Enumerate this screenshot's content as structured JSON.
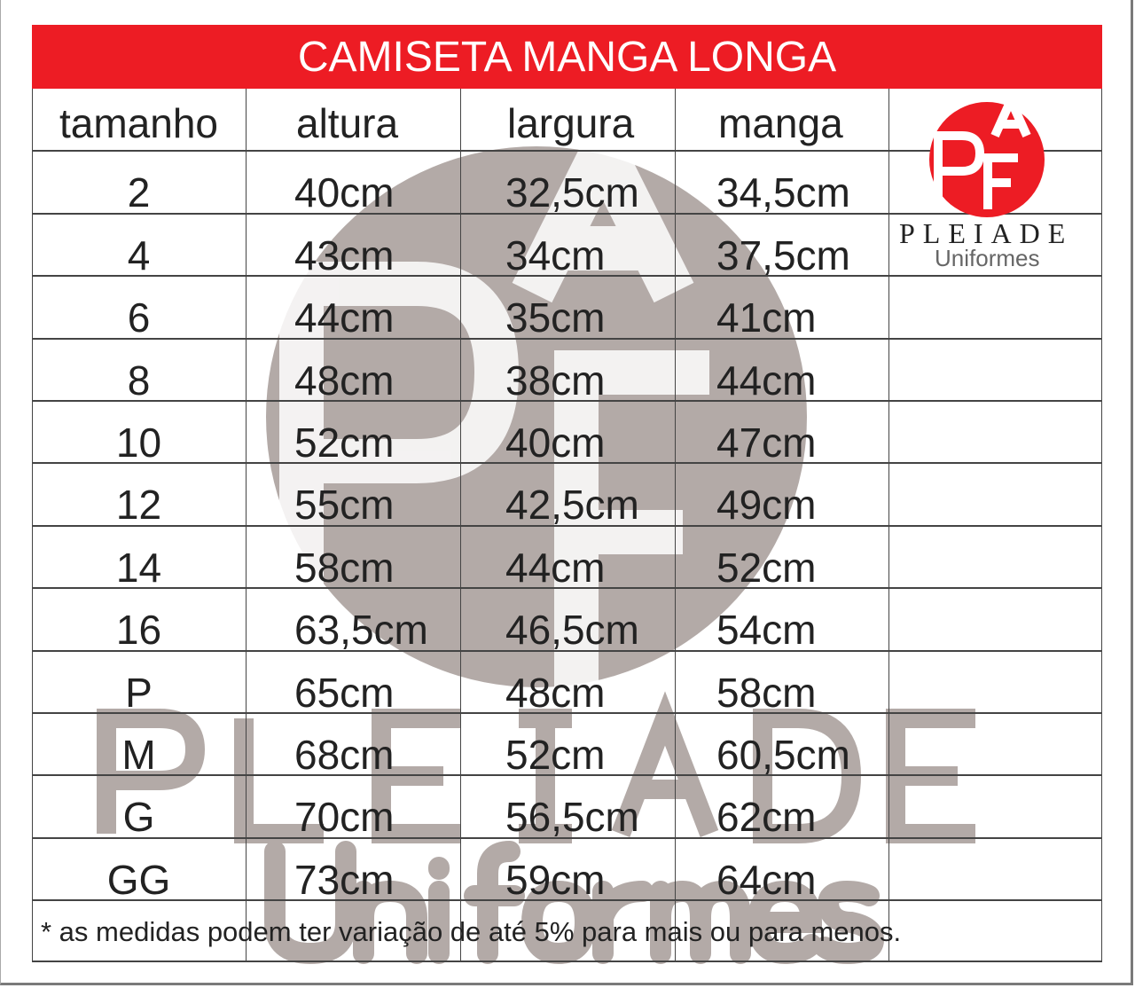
{
  "title": "CAMISETA MANGA LONGA",
  "columns": [
    "tamanho",
    "altura",
    "largura",
    "manga"
  ],
  "rows": [
    [
      "2",
      "40cm",
      "32,5cm",
      "34,5cm"
    ],
    [
      "4",
      "43cm",
      "34cm",
      "37,5cm"
    ],
    [
      "6",
      "44cm",
      "35cm",
      "41cm"
    ],
    [
      "8",
      "48cm",
      "38cm",
      "44cm"
    ],
    [
      "10",
      "52cm",
      "40cm",
      "47cm"
    ],
    [
      "12",
      "55cm",
      "42,5cm",
      "49cm"
    ],
    [
      "14",
      "58cm",
      "44cm",
      "52cm"
    ],
    [
      "16",
      "63,5cm",
      "46,5cm",
      "54cm"
    ],
    [
      "P",
      "65cm",
      "48cm",
      "58cm"
    ],
    [
      "M",
      "68cm",
      "52cm",
      "60,5cm"
    ],
    [
      "G",
      "70cm",
      "56,5cm",
      "62cm"
    ],
    [
      "GG",
      "73cm",
      "59cm",
      "64cm"
    ]
  ],
  "footnote": "* as medidas podem ter variação de até 5% para mais ou para menos.",
  "logo": {
    "monogram": "PAF",
    "brand": "PLEIADE",
    "sub": "Uniformes"
  },
  "watermark": {
    "brand": "PLEIADE",
    "sub": "Uniformes"
  },
  "colors": {
    "accent": "#ed1c24",
    "watermark": "#b3aaa7",
    "text": "#222222"
  }
}
